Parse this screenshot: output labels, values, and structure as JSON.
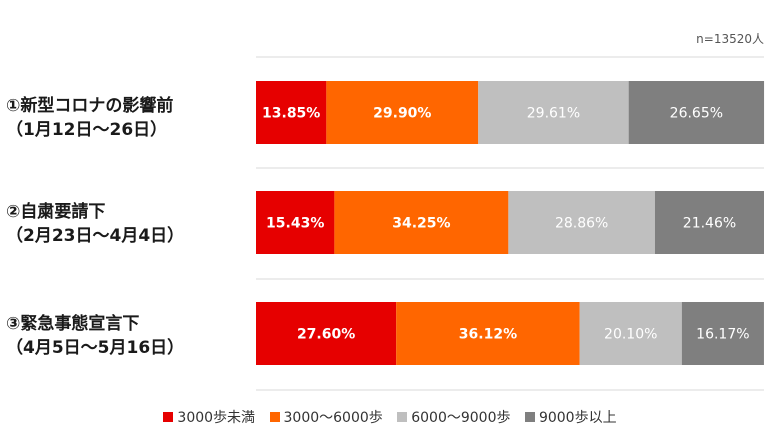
{
  "chart_data": {
    "type": "bar",
    "orientation": "horizontal",
    "stacked": true,
    "percent_scale": true,
    "note": "n=13520人",
    "categories": [
      [
        "①新型コロナの影響前",
        "（1月12日～26日）"
      ],
      [
        "②自粛要請下",
        "（2月23日～4月4日）"
      ],
      [
        "③緊急事態宣言下",
        "（4月5日～5月16日）"
      ]
    ],
    "series": [
      {
        "name": "3000歩未満",
        "color": "#e60000",
        "text_color": "#ffffff",
        "bold": true,
        "values": [
          13.85,
          15.43,
          27.6
        ],
        "labels": [
          "13.85%",
          "15.43%",
          "27.60%"
        ]
      },
      {
        "name": "3000～6000歩",
        "color": "#ff6600",
        "text_color": "#ffffff",
        "bold": true,
        "values": [
          29.9,
          34.25,
          36.12
        ],
        "labels": [
          "29.90%",
          "34.25%",
          "36.12%"
        ]
      },
      {
        "name": "6000～9000歩",
        "color": "#bfbfbf",
        "text_color": "#ffffff",
        "bold": false,
        "values": [
          29.61,
          28.86,
          20.1
        ],
        "labels": [
          "29.61%",
          "28.86%",
          "20.10%"
        ]
      },
      {
        "name": "9000歩以上",
        "color": "#7f7f7f",
        "text_color": "#ffffff",
        "bold": false,
        "values": [
          26.65,
          21.46,
          16.17
        ],
        "labels": [
          "26.65%",
          "21.46%",
          "16.17%"
        ]
      }
    ],
    "xlim": [
      0,
      100
    ],
    "grid": false,
    "legend_position": "bottom"
  }
}
